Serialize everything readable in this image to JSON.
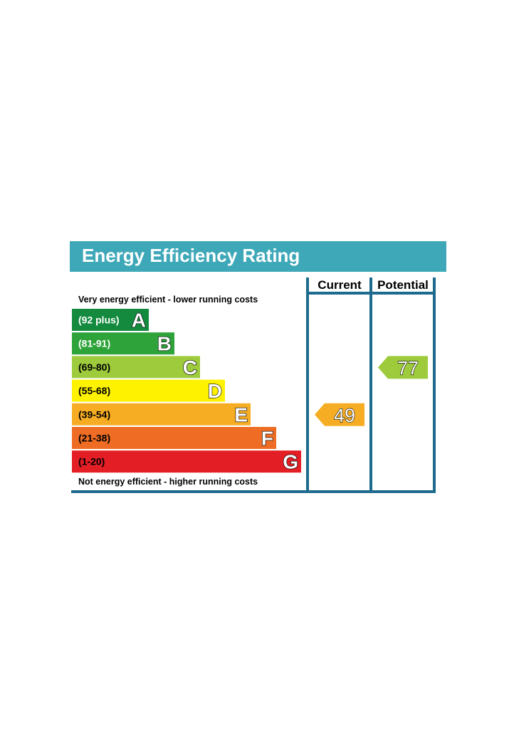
{
  "title": "Energy Efficiency Rating",
  "columns": {
    "current": "Current",
    "potential": "Potential"
  },
  "notes": {
    "top": "Very energy efficient - lower running costs",
    "bottom": "Not energy efficient - higher running costs"
  },
  "colors": {
    "header": "#3fa8b8",
    "frame": "#1d6a8c",
    "dark_text": "#000000",
    "light_text": "#ffffff"
  },
  "chart_data": {
    "type": "bar",
    "bands": [
      {
        "letter": "A",
        "range": "(92 plus)",
        "min": 92,
        "max": 100,
        "color": "#138a3e",
        "text_color": "#ffffff"
      },
      {
        "letter": "B",
        "range": "(81-91)",
        "min": 81,
        "max": 91,
        "color": "#2ea339",
        "text_color": "#ffffff"
      },
      {
        "letter": "C",
        "range": "(69-80)",
        "min": 69,
        "max": 80,
        "color": "#9dcb3c",
        "text_color": "#000000"
      },
      {
        "letter": "D",
        "range": "(55-68)",
        "min": 55,
        "max": 68,
        "color": "#fff200",
        "text_color": "#000000"
      },
      {
        "letter": "E",
        "range": "(39-54)",
        "min": 39,
        "max": 54,
        "color": "#f6ad23",
        "text_color": "#000000"
      },
      {
        "letter": "F",
        "range": "(21-38)",
        "min": 21,
        "max": 38,
        "color": "#ee6c23",
        "text_color": "#000000"
      },
      {
        "letter": "G",
        "range": "(1-20)",
        "min": 1,
        "max": 20,
        "color": "#e31e24",
        "text_color": "#000000"
      }
    ],
    "current": {
      "value": 49,
      "band": "E"
    },
    "potential": {
      "value": 77,
      "band": "C"
    }
  }
}
